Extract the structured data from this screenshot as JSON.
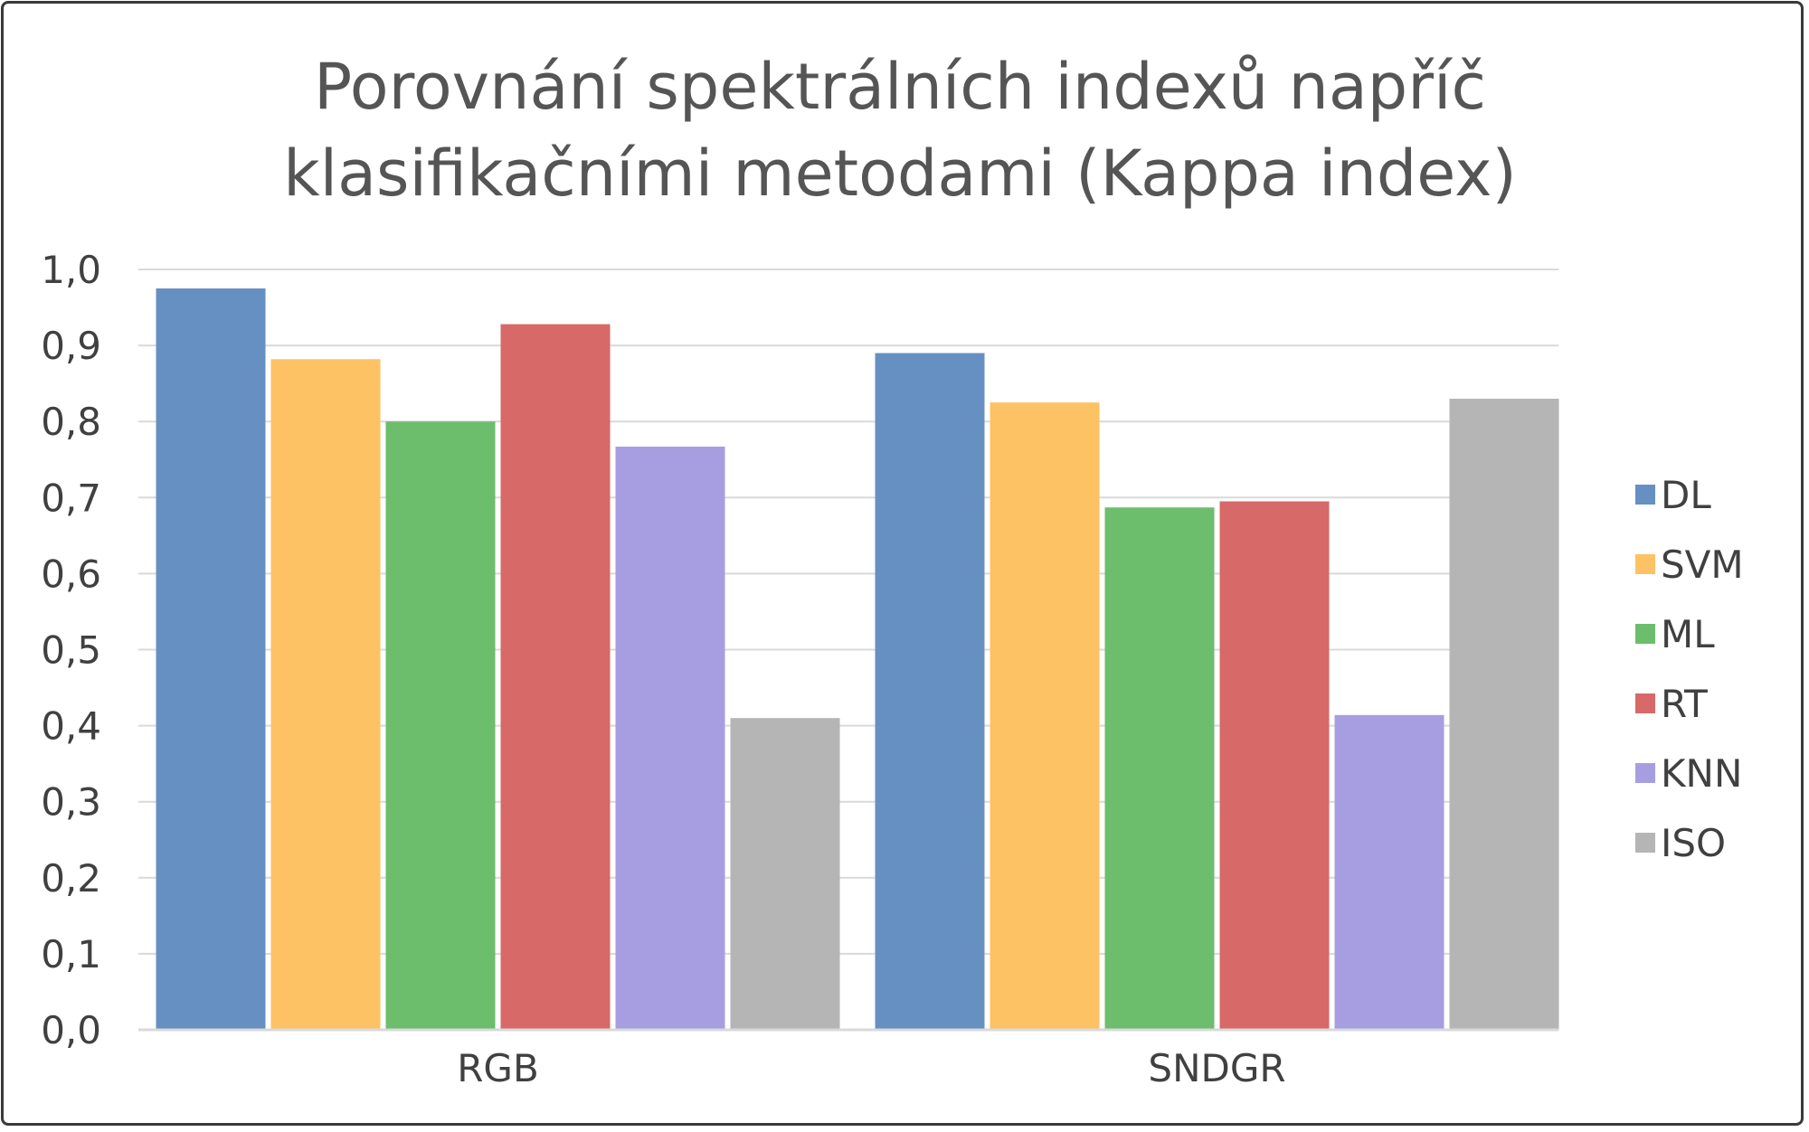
{
  "chart_data": {
    "type": "bar",
    "title_lines": [
      "Porovnání spektrálních indexů napříč",
      "klasifikačními metodami (Kappa index)"
    ],
    "categories": [
      "RGB",
      "SNDGR"
    ],
    "series": [
      {
        "name": "DL",
        "color": "#6690C2",
        "values": [
          0.975,
          0.89
        ]
      },
      {
        "name": "SVM",
        "color": "#FDC264",
        "values": [
          0.882,
          0.825
        ]
      },
      {
        "name": "ML",
        "color": "#6CBE6C",
        "values": [
          0.8,
          0.687
        ]
      },
      {
        "name": "RT",
        "color": "#D76969",
        "values": [
          0.928,
          0.695
        ]
      },
      {
        "name": "KNN",
        "color": "#A79EE2",
        "values": [
          0.767,
          0.414
        ]
      },
      {
        "name": "ISO",
        "color": "#B5B5B5",
        "values": [
          0.41,
          0.83
        ]
      }
    ],
    "ylim": [
      0,
      1.0
    ],
    "yticks": [
      0,
      0.1,
      0.2,
      0.3,
      0.4,
      0.5,
      0.6,
      0.7,
      0.8,
      0.9,
      1.0
    ],
    "ytick_labels": [
      "0,0",
      "0,1",
      "0,2",
      "0,3",
      "0,4",
      "0,5",
      "0,6",
      "0,7",
      "0,8",
      "0,9",
      "1,0"
    ],
    "grid": true,
    "legend_position": "right"
  }
}
